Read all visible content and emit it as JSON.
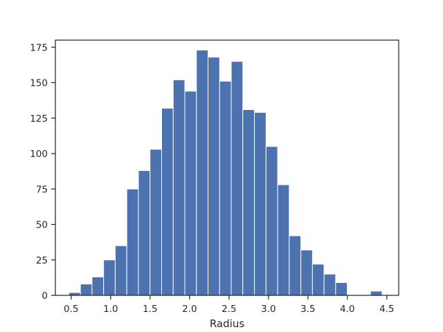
{
  "chart_data": {
    "type": "bar",
    "subtype": "histogram",
    "xlabel": "Radius",
    "ylabel": "",
    "xlim": [
      0.3,
      4.65
    ],
    "ylim": [
      0,
      180
    ],
    "x_ticks": [
      0.5,
      1.0,
      1.5,
      2.0,
      2.5,
      3.0,
      3.5,
      4.0,
      4.5
    ],
    "x_tick_labels": [
      "0.5",
      "1.0",
      "1.5",
      "2.0",
      "2.5",
      "3.0",
      "3.5",
      "4.0",
      "4.5"
    ],
    "y_ticks": [
      0,
      25,
      50,
      75,
      100,
      125,
      150,
      175
    ],
    "y_tick_labels": [
      "0",
      "25",
      "50",
      "75",
      "100",
      "125",
      "150",
      "175"
    ],
    "bin_edges": [
      0.47,
      0.617,
      0.764,
      0.911,
      1.058,
      1.205,
      1.352,
      1.499,
      1.646,
      1.793,
      1.94,
      2.087,
      2.234,
      2.381,
      2.528,
      2.675,
      2.822,
      2.969,
      3.116,
      3.263,
      3.41,
      3.557,
      3.704,
      3.851,
      3.998,
      4.145,
      4.292,
      4.439
    ],
    "values": [
      2,
      8,
      13,
      25,
      35,
      75,
      88,
      103,
      132,
      152,
      144,
      173,
      168,
      151,
      165,
      131,
      129,
      105,
      78,
      42,
      32,
      22,
      15,
      9,
      0,
      0,
      3
    ],
    "bar_color": "#4c72b0",
    "edge_color": "#ffffff",
    "grid": false
  }
}
